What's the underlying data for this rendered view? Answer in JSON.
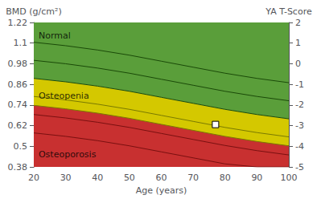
{
  "chart_data": {
    "type": "line",
    "ylabel": "BMD (g/cm²)",
    "y2label": "YA T-Score",
    "xlabel": "Age (years)",
    "x": [
      20,
      30,
      40,
      50,
      60,
      70,
      80,
      90,
      100
    ],
    "xlim": [
      20,
      100
    ],
    "xticks": [
      20,
      30,
      40,
      50,
      60,
      70,
      80,
      90,
      100
    ],
    "ylim": [
      0.38,
      1.22
    ],
    "yticks": [
      0.38,
      0.5,
      0.62,
      0.74,
      0.86,
      0.98,
      1.1,
      1.22
    ],
    "y2lim": [
      -5,
      2
    ],
    "y2ticks": [
      -5,
      -4,
      -3,
      -2,
      -1,
      0,
      1,
      2
    ],
    "grid": false,
    "series": [
      {
        "color": "#1a4a08",
        "values": [
          1.105,
          1.085,
          1.06,
          1.03,
          0.995,
          0.96,
          0.925,
          0.895,
          0.87
        ]
      },
      {
        "color": "#1a4a08",
        "values": [
          1.0,
          0.98,
          0.955,
          0.925,
          0.89,
          0.855,
          0.82,
          0.79,
          0.765
        ]
      },
      {
        "color": "#1a4a08",
        "fill_above": "#5a9e3a",
        "fill_below": "#d4c800",
        "values": [
          0.895,
          0.875,
          0.85,
          0.82,
          0.785,
          0.75,
          0.715,
          0.685,
          0.66
        ]
      },
      {
        "color": "#7a7a00",
        "values": [
          0.79,
          0.77,
          0.745,
          0.715,
          0.68,
          0.645,
          0.61,
          0.58,
          0.555
        ]
      },
      {
        "color": "#7a7a00",
        "fill_below": "#c83030",
        "values": [
          0.738,
          0.718,
          0.693,
          0.663,
          0.628,
          0.593,
          0.558,
          0.528,
          0.503
        ]
      },
      {
        "color": "#7a1010",
        "values": [
          0.685,
          0.665,
          0.64,
          0.61,
          0.575,
          0.54,
          0.505,
          0.475,
          0.45
        ]
      },
      {
        "color": "#7a1010",
        "values": [
          0.578,
          0.558,
          0.533,
          0.503,
          0.468,
          0.433,
          0.398,
          0.38,
          0.38
        ]
      },
      {
        "type": "scatter",
        "marker": "square",
        "color": "#ffffff",
        "x": [
          77
        ],
        "values": [
          0.627
        ]
      }
    ],
    "annotations": [
      {
        "text": "Normal",
        "x": 21.5,
        "y": 1.145
      },
      {
        "text": "Osteopenia",
        "x": 21.5,
        "y": 0.795
      },
      {
        "text": "Osteoporosis",
        "x": 21.5,
        "y": 0.455
      }
    ]
  }
}
